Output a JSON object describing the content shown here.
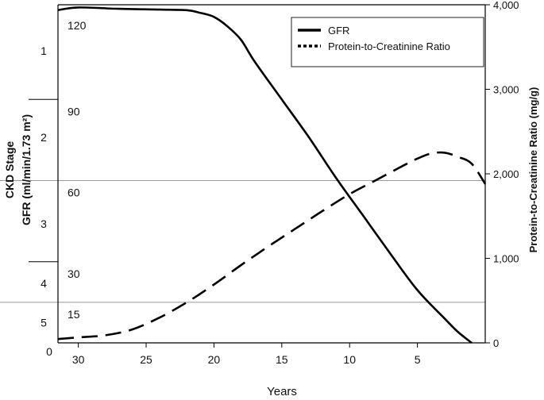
{
  "chart_data": {
    "type": "line",
    "xlabel": "Years",
    "ylabel_left_line1": "CKD Stage",
    "ylabel_left_line2": "GFR (ml/min/1.73 m²)",
    "ylabel_right": "Protein-to-Creatinine Ratio (mg/g)",
    "x_ticks": [
      30,
      25,
      20,
      15,
      10,
      5
    ],
    "x_axis_direction": "decreasing to the right",
    "xlim": [
      31.5,
      0
    ],
    "left_ylim": [
      0,
      125
    ],
    "left_ticks": [
      {
        "value": 120,
        "label": "120"
      },
      {
        "value": 90,
        "label": "90"
      },
      {
        "value": 60,
        "label": "60"
      },
      {
        "value": 30,
        "label": "30"
      },
      {
        "value": 15,
        "label": "15"
      },
      {
        "value": 0,
        "label": "0"
      }
    ],
    "right_ylim": [
      0,
      4000
    ],
    "right_ticks": [
      {
        "value": 4000,
        "label": "4,000"
      },
      {
        "value": 3000,
        "label": "3,000"
      },
      {
        "value": 2000,
        "label": "2,000"
      },
      {
        "value": 1000,
        "label": "1,000"
      },
      {
        "value": 0,
        "label": "0"
      }
    ],
    "stage_labels": [
      {
        "label": "1",
        "at": 108
      },
      {
        "label": "2",
        "at": 76
      },
      {
        "label": "3",
        "at": 44
      },
      {
        "label": "4",
        "at": 22
      },
      {
        "label": "5",
        "at": 7.5
      }
    ],
    "stage_boundaries": [
      90,
      60,
      30,
      15
    ],
    "reference_lines": [
      60,
      15
    ],
    "legend_position": "top-right",
    "series": [
      {
        "name": "GFR",
        "axis": "left",
        "style": "solid",
        "points": [
          [
            31.5,
            123
          ],
          [
            30,
            124
          ],
          [
            27,
            123.5
          ],
          [
            24,
            123.2
          ],
          [
            22,
            123
          ],
          [
            21,
            122
          ],
          [
            20,
            120.5
          ],
          [
            19,
            117
          ],
          [
            18,
            112
          ],
          [
            17,
            104
          ],
          [
            15,
            90
          ],
          [
            13,
            76
          ],
          [
            11,
            61
          ],
          [
            9,
            47
          ],
          [
            7,
            33
          ],
          [
            5,
            19.5
          ],
          [
            3,
            9
          ],
          [
            2,
            4
          ],
          [
            1,
            0
          ]
        ]
      },
      {
        "name": "Protein-to-Creatinine Ratio",
        "axis": "right",
        "style": "dashed",
        "points": [
          [
            31.5,
            45
          ],
          [
            30,
            65
          ],
          [
            28,
            90
          ],
          [
            26,
            160
          ],
          [
            24,
            300
          ],
          [
            22,
            480
          ],
          [
            20,
            690
          ],
          [
            18,
            920
          ],
          [
            16,
            1140
          ],
          [
            14,
            1350
          ],
          [
            12,
            1560
          ],
          [
            10,
            1760
          ],
          [
            8,
            1930
          ],
          [
            6,
            2100
          ],
          [
            5,
            2180
          ],
          [
            4,
            2240
          ],
          [
            3,
            2250
          ],
          [
            2,
            2200
          ],
          [
            1,
            2120
          ],
          [
            0,
            1880
          ]
        ]
      }
    ]
  }
}
